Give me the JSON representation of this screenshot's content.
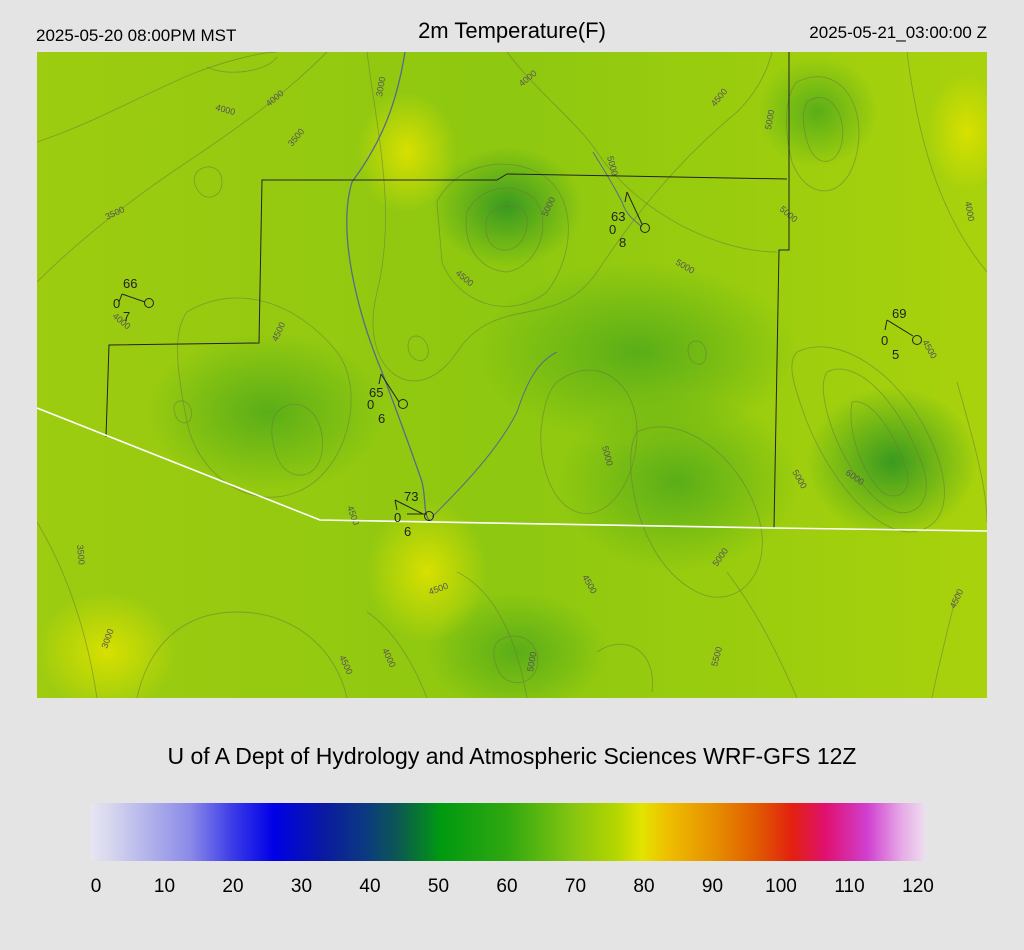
{
  "header": {
    "local_time": "2025-05-20 08:00PM MST",
    "title": "2m Temperature(F)",
    "utc_time": "2025-05-21_03:00:00 Z"
  },
  "credit": "U of A Dept of Hydrology and Atmospheric Sciences WRF-GFS 12Z",
  "colorbar": {
    "ticks": [
      "0",
      "10",
      "20",
      "30",
      "40",
      "50",
      "60",
      "70",
      "80",
      "90",
      "100",
      "110",
      "120"
    ]
  },
  "contour_labels": [
    "3000",
    "3500",
    "4000",
    "4500",
    "5000",
    "5500",
    "6000"
  ],
  "stations": [
    {
      "temp": "66",
      "left": "0",
      "right": "7"
    },
    {
      "temp": "63",
      "left": "0",
      "right": "8"
    },
    {
      "temp": "69",
      "left": "0",
      "right": "5"
    },
    {
      "temp": "65",
      "left": "0",
      "right": "6"
    },
    {
      "temp": "73",
      "left": "0",
      "right": "6"
    }
  ],
  "colors": {
    "background": "#e4e4e4",
    "boundary": "#ffffff",
    "contour": "#6a7a3a"
  }
}
